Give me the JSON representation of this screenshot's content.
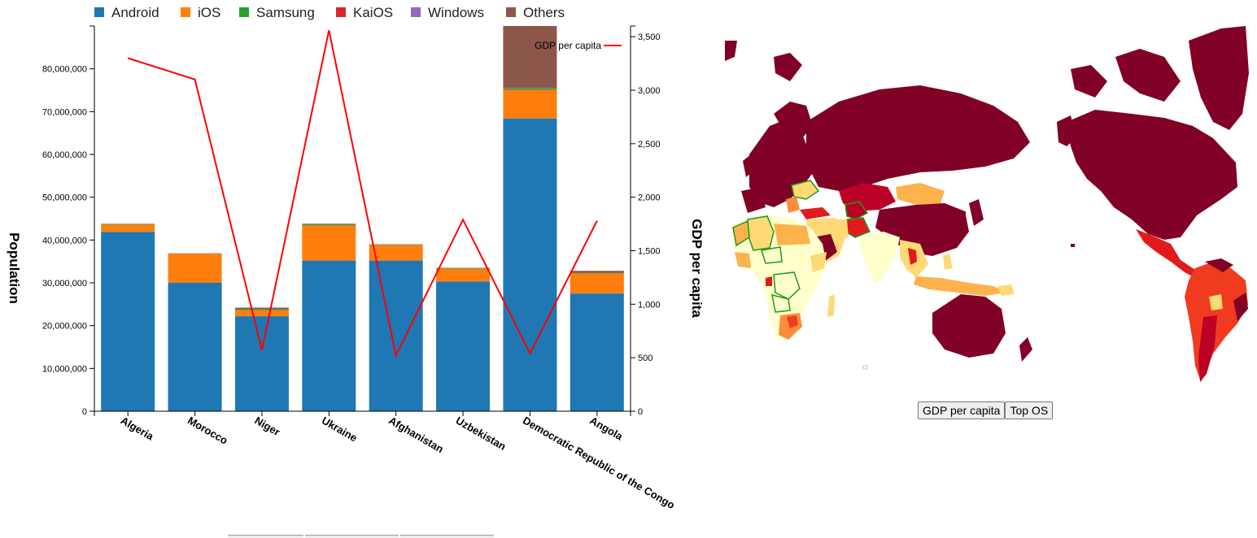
{
  "chart_data": {
    "type": "bar",
    "stacked": true,
    "categories": [
      "Algeria",
      "Morocco",
      "Niger",
      "Ukraine",
      "Afghanistan",
      "Uzbekistan",
      "Democratic Republic of the Congo",
      "Angola"
    ],
    "series": [
      {
        "name": "Android",
        "color": "#1f77b4",
        "values": [
          41900000,
          30000000,
          22200000,
          35200000,
          35200000,
          30300000,
          68400000,
          27500000
        ]
      },
      {
        "name": "iOS",
        "color": "#ff7f0e",
        "values": [
          1700000,
          6800000,
          1400000,
          8200000,
          3600000,
          3000000,
          6700000,
          4700000
        ]
      },
      {
        "name": "Samsung",
        "color": "#2ca02c",
        "values": [
          100000,
          0,
          200000,
          200000,
          100000,
          100000,
          300000,
          100000
        ]
      },
      {
        "name": "KaiOS",
        "color": "#d62728",
        "values": [
          0,
          0,
          0,
          0,
          0,
          0,
          0,
          0
        ]
      },
      {
        "name": "Windows",
        "color": "#9467bd",
        "values": [
          0,
          0,
          0,
          0,
          0,
          0,
          100000,
          0
        ]
      },
      {
        "name": "Others",
        "color": "#8c564b",
        "values": [
          100000,
          100000,
          400000,
          200000,
          100000,
          100000,
          14500000,
          500000
        ]
      }
    ],
    "line": {
      "name": "GDP per capita",
      "color": "#ff0000",
      "values": [
        3300,
        3100,
        570,
        3560,
        520,
        1790,
        540,
        1780
      ]
    },
    "ylabel": "Population",
    "y2label": "GDP per capita",
    "ylim": [
      0,
      90000000
    ],
    "y2lim": [
      0,
      3600
    ],
    "yticks": [
      0,
      10000000,
      20000000,
      30000000,
      40000000,
      50000000,
      60000000,
      70000000,
      80000000
    ],
    "ytick_labels": [
      "0",
      "10,000,000",
      "20,000,000",
      "30,000,000",
      "40,000,000",
      "50,000,000",
      "60,000,000",
      "70,000,000",
      "80,000,000"
    ],
    "y2ticks": [
      0,
      500,
      1000,
      1500,
      2000,
      2500,
      3000,
      3500
    ],
    "y2tick_labels": [
      "0",
      "500",
      "1,000",
      "1,500",
      "2,000",
      "2,500",
      "3,000",
      "3,500"
    ],
    "legend_position": "top-left",
    "line_legend_position": "top-right",
    "grid": false
  },
  "map_buttons": {
    "gdp": "GDP per capita",
    "os": "Top OS"
  },
  "map_colors": {
    "very_high": "#800026",
    "high": "#bd0026",
    "mid_high": "#e31a1c",
    "mid": "#f03b20",
    "mid_low": "#fd8d3c",
    "low": "#feb24c",
    "very_low": "#fed976",
    "lowest": "#ffffcc",
    "highlight": "#1a9a1a"
  }
}
